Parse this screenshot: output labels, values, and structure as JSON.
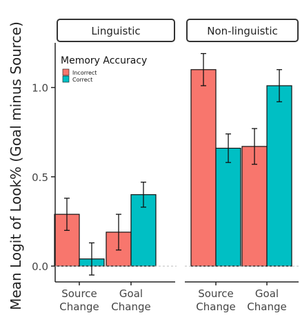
{
  "chart_data": {
    "type": "bar",
    "ylabel": "Mean Logit of Look% (Goal minus Source)",
    "ylim": [
      -0.05,
      1.25
    ],
    "yticks": [
      0.0,
      0.5,
      1.0
    ],
    "ytick_labels": [
      "0.0",
      "0.5",
      "1.0"
    ],
    "legend": {
      "title": "Memory Accuracy",
      "placement": "top-left",
      "entries": [
        "Incorrect",
        "Correct"
      ]
    },
    "colors": {
      "Incorrect": "#f8766d",
      "Correct": "#00bfc4"
    },
    "facets": [
      {
        "label": "Linguistic",
        "categories": [
          {
            "label_line1": "Source",
            "label_line2": "Change"
          },
          {
            "label_line1": "Goal",
            "label_line2": "Change"
          }
        ],
        "series": [
          {
            "name": "Incorrect",
            "values": [
              0.29,
              0.19
            ],
            "error": [
              0.09,
              0.1
            ]
          },
          {
            "name": "Correct",
            "values": [
              0.04,
              0.4
            ],
            "error": [
              0.09,
              0.07
            ]
          }
        ]
      },
      {
        "label": "Non-linguistic",
        "categories": [
          {
            "label_line1": "Source",
            "label_line2": "Change"
          },
          {
            "label_line1": "Goal",
            "label_line2": "Change"
          }
        ],
        "series": [
          {
            "name": "Incorrect",
            "values": [
              1.1,
              0.67
            ],
            "error": [
              0.09,
              0.1
            ]
          },
          {
            "name": "Correct",
            "values": [
              0.66,
              1.01
            ],
            "error": [
              0.08,
              0.09
            ]
          }
        ]
      }
    ]
  }
}
